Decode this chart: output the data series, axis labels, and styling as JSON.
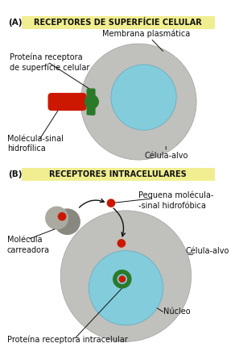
{
  "bg_color": "#ffffff",
  "yellow_bg": "#f0ee90",
  "title_A": "RECEPTORES DE SUPERFÍCIE CELULAR",
  "title_B": "RECEPTORES INTRACELULARES",
  "label_A": "(A)",
  "label_B": "(B)",
  "cell_gray": "#c0c0bc",
  "cell_edge": "#a0a09c",
  "nucleus_blue": "#82ccdc",
  "nucleus_edge": "#60aabf",
  "green_receptor": "#2a7a2a",
  "red_molecule": "#cc1800",
  "carrier_gray1": "#888880",
  "carrier_gray2": "#aaaaa0",
  "arrow_color": "#111111",
  "text_color": "#111111",
  "font_size": 7.0
}
